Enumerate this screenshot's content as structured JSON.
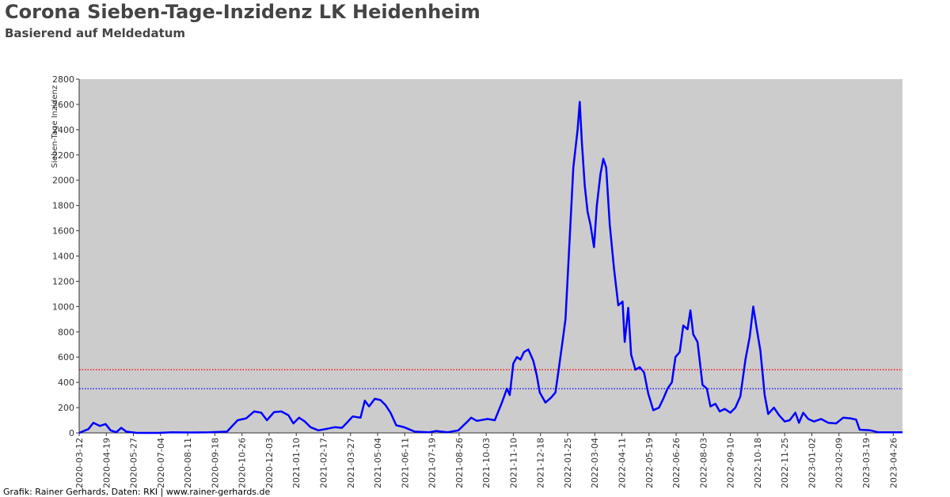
{
  "chart_data": {
    "type": "line",
    "title": "Corona Sieben-Tage-Inzidenz LK Heidenheim",
    "subtitle": "Basierend auf Meldedatum",
    "y_label": "Sieben-Tage Inzidenz",
    "footer": "Grafik: Rainer Gerhards, Daten: RKI | www.rainer-gerhards.de",
    "color": "#0000ff",
    "background": "#cccccc",
    "grid": false,
    "xlim": [
      "2020-03-12",
      "2023-05-09"
    ],
    "ylim": [
      0,
      2800
    ],
    "yticks": [
      0,
      200,
      400,
      600,
      800,
      1000,
      1200,
      1400,
      1600,
      1800,
      2000,
      2200,
      2400,
      2600,
      2800
    ],
    "xticks": [
      "2020-03-12",
      "2020-04-19",
      "2020-05-27",
      "2020-07-04",
      "2020-08-11",
      "2020-09-18",
      "2020-10-26",
      "2020-12-03",
      "2021-01-10",
      "2021-02-17",
      "2021-03-27",
      "2021-05-04",
      "2021-06-11",
      "2021-07-19",
      "2021-08-26",
      "2021-10-03",
      "2021-11-10",
      "2021-12-18",
      "2022-01-25",
      "2022-03-04",
      "2022-04-11",
      "2022-05-19",
      "2022-06-26",
      "2022-08-03",
      "2022-09-10",
      "2022-10-18",
      "2022-11-25",
      "2023-01-02",
      "2023-02-09",
      "2023-03-19",
      "2023-04-26"
    ],
    "reference_lines": [
      {
        "value": 500,
        "color": "#ff0000"
      },
      {
        "value": 350,
        "color": "#0000ff"
      }
    ],
    "x": [
      "2020-03-12",
      "2020-03-25",
      "2020-04-01",
      "2020-04-10",
      "2020-04-18",
      "2020-04-25",
      "2020-05-03",
      "2020-05-10",
      "2020-05-17",
      "2020-06-01",
      "2020-07-01",
      "2020-07-20",
      "2020-08-15",
      "2020-09-10",
      "2020-10-05",
      "2020-10-20",
      "2020-11-01",
      "2020-11-12",
      "2020-11-22",
      "2020-11-30",
      "2020-12-10",
      "2020-12-20",
      "2020-12-30",
      "2021-01-06",
      "2021-01-14",
      "2021-01-22",
      "2021-01-30",
      "2021-02-10",
      "2021-02-20",
      "2021-03-05",
      "2021-03-15",
      "2021-03-22",
      "2021-03-30",
      "2021-04-10",
      "2021-04-16",
      "2021-04-22",
      "2021-04-30",
      "2021-05-08",
      "2021-05-15",
      "2021-05-22",
      "2021-05-30",
      "2021-06-10",
      "2021-06-25",
      "2021-07-15",
      "2021-07-25",
      "2021-08-10",
      "2021-08-25",
      "2021-09-05",
      "2021-09-12",
      "2021-09-20",
      "2021-10-05",
      "2021-10-15",
      "2021-10-25",
      "2021-11-01",
      "2021-11-05",
      "2021-11-10",
      "2021-11-15",
      "2021-11-20",
      "2021-11-25",
      "2021-12-01",
      "2021-12-08",
      "2021-12-13",
      "2021-12-17",
      "2021-12-25",
      "2022-01-02",
      "2022-01-08",
      "2022-01-12",
      "2022-01-18",
      "2022-01-22",
      "2022-01-28",
      "2022-02-02",
      "2022-02-08",
      "2022-02-11",
      "2022-02-14",
      "2022-02-18",
      "2022-02-22",
      "2022-02-26",
      "2022-03-03",
      "2022-03-07",
      "2022-03-12",
      "2022-03-16",
      "2022-03-20",
      "2022-03-25",
      "2022-03-31",
      "2022-04-06",
      "2022-04-12",
      "2022-04-15",
      "2022-04-20",
      "2022-04-24",
      "2022-04-30",
      "2022-05-06",
      "2022-05-12",
      "2022-05-18",
      "2022-05-25",
      "2022-06-02",
      "2022-06-08",
      "2022-06-14",
      "2022-06-20",
      "2022-06-25",
      "2022-07-01",
      "2022-07-06",
      "2022-07-12",
      "2022-07-16",
      "2022-07-20",
      "2022-07-26",
      "2022-08-02",
      "2022-08-08",
      "2022-08-13",
      "2022-08-20",
      "2022-08-26",
      "2022-09-02",
      "2022-09-10",
      "2022-09-17",
      "2022-09-24",
      "2022-10-01",
      "2022-10-07",
      "2022-10-12",
      "2022-10-17",
      "2022-10-22",
      "2022-10-28",
      "2022-11-02",
      "2022-11-10",
      "2022-11-17",
      "2022-11-25",
      "2022-12-02",
      "2022-12-10",
      "2022-12-15",
      "2022-12-21",
      "2022-12-28",
      "2023-01-05",
      "2023-01-15",
      "2023-01-25",
      "2023-02-05",
      "2023-02-15",
      "2023-02-25",
      "2023-03-05",
      "2023-03-10",
      "2023-03-25",
      "2023-04-05",
      "2023-04-20",
      "2023-05-09"
    ],
    "values": [
      0,
      30,
      80,
      55,
      70,
      20,
      5,
      40,
      10,
      0,
      0,
      5,
      3,
      5,
      10,
      100,
      115,
      170,
      160,
      100,
      165,
      170,
      140,
      75,
      120,
      90,
      45,
      20,
      30,
      45,
      40,
      80,
      130,
      120,
      255,
      210,
      270,
      260,
      220,
      160,
      60,
      45,
      10,
      5,
      15,
      5,
      20,
      80,
      120,
      95,
      110,
      100,
      240,
      350,
      300,
      550,
      600,
      580,
      640,
      660,
      570,
      450,
      320,
      240,
      280,
      320,
      480,
      730,
      900,
      1550,
      2100,
      2400,
      2620,
      2300,
      1960,
      1750,
      1650,
      1470,
      1800,
      2050,
      2170,
      2100,
      1650,
      1300,
      1010,
      1040,
      720,
      990,
      620,
      500,
      520,
      480,
      310,
      180,
      200,
      270,
      350,
      400,
      600,
      640,
      850,
      820,
      970,
      780,
      720,
      380,
      350,
      210,
      230,
      170,
      190,
      160,
      200,
      290,
      580,
      760,
      1000,
      820,
      650,
      300,
      150,
      200,
      140,
      90,
      100,
      160,
      80,
      160,
      110,
      90,
      110,
      80,
      75,
      120,
      115,
      105,
      25,
      20,
      5,
      5,
      5
    ]
  }
}
